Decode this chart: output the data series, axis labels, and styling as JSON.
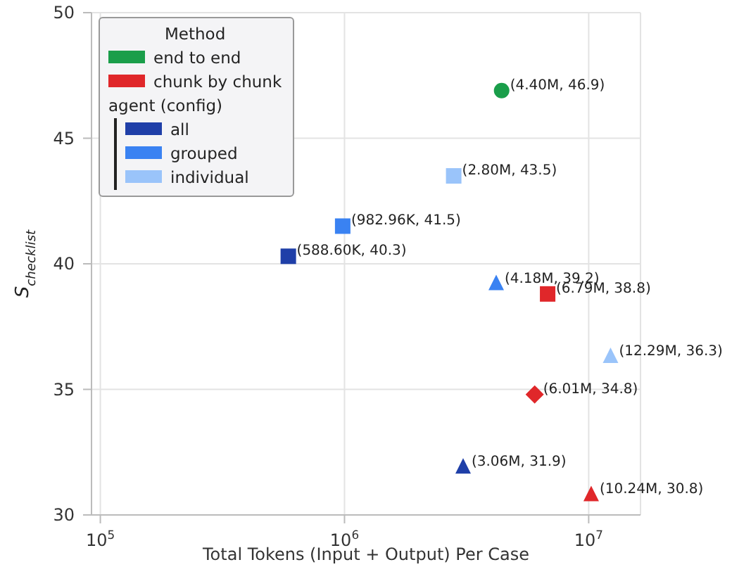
{
  "chart_data": {
    "type": "scatter",
    "xlabel": "Total Tokens (Input + Output) Per Case",
    "ylabel": "S$_{checklist}$",
    "legend_title": "Method",
    "annotations": [
      "agent (config)"
    ],
    "log": "x",
    "grid": true,
    "legend": "top left",
    "xlim": [
      92000,
      16300000
    ],
    "xticks": [
      {
        "value": 100000,
        "label": "10$^{5}$"
      },
      {
        "value": 1000000,
        "label": "10$^{6}$"
      },
      {
        "value": 10000000,
        "label": "10$^{7}$"
      }
    ],
    "ylim": [
      30,
      50
    ],
    "yticks": [
      30,
      35,
      40,
      45,
      50
    ],
    "series": [
      {
        "name": "end to end",
        "color": "#1a9e4a",
        "marker": "circle",
        "x": [
          4400000
        ],
        "values": [
          46.9
        ],
        "value_labels": [
          "(4.40M, 46.9)"
        ]
      },
      {
        "name": "chunk by chunk",
        "color": "#e0272a",
        "marker": "square",
        "x": [
          6790000
        ],
        "values": [
          38.8
        ],
        "value_labels": [
          "(6.79M, 38.8)"
        ]
      },
      {
        "color": "#e0272a",
        "marker": "diamond",
        "x": [
          6010000
        ],
        "values": [
          34.8
        ],
        "value_labels": [
          "(6.01M, 34.8)"
        ]
      },
      {
        "color": "#e0272a",
        "marker": "triangle",
        "x": [
          10240000
        ],
        "values": [
          30.8
        ],
        "value_labels": [
          "(10.24M, 30.8)"
        ]
      },
      {
        "name": "all",
        "color": "#1f3fa8",
        "marker": "square",
        "x": [
          588600
        ],
        "values": [
          40.3
        ],
        "value_labels": [
          "(588.60K, 40.3)"
        ]
      },
      {
        "color": "#1f3fa8",
        "marker": "triangle",
        "x": [
          3060000
        ],
        "values": [
          31.9
        ],
        "value_labels": [
          "(3.06M, 31.9)"
        ]
      },
      {
        "name": "grouped",
        "color": "#3a82f2",
        "marker": "square",
        "x": [
          982960
        ],
        "values": [
          41.5
        ],
        "value_labels": [
          "(982.96K, 41.5)"
        ]
      },
      {
        "color": "#3a82f2",
        "marker": "triangle",
        "x": [
          4180000
        ],
        "values": [
          39.2
        ],
        "value_labels": [
          "(4.18M, 39.2)"
        ]
      },
      {
        "name": "individual",
        "color": "#9ac4fa",
        "marker": "square",
        "x": [
          2800000
        ],
        "values": [
          43.5
        ],
        "value_labels": [
          "(2.80M, 43.5)"
        ]
      },
      {
        "color": "#9ac4fa",
        "marker": "triangle",
        "x": [
          12290000
        ],
        "values": [
          36.3
        ],
        "value_labels": [
          "(12.29M, 36.3)"
        ]
      }
    ]
  }
}
